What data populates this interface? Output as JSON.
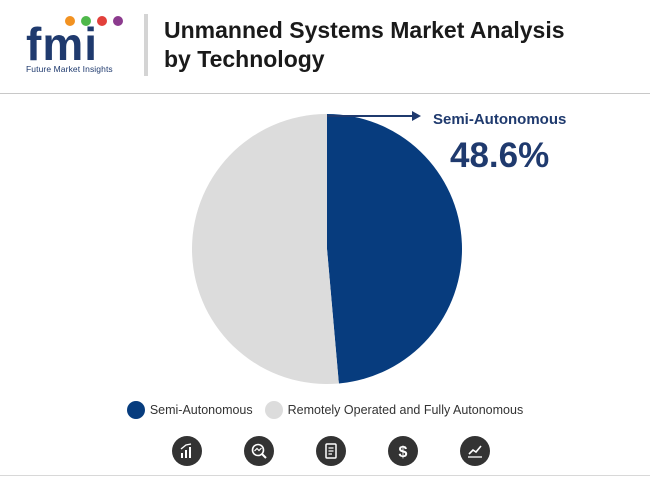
{
  "header": {
    "title_line1": "Unmanned Systems Market Analysis",
    "title_line2": "by Technology",
    "logo_text": "fmi",
    "logo_tagline": "Future Market Insights"
  },
  "callout": {
    "label": "Semi-Autonomous",
    "value": "48.6%"
  },
  "chart_data": {
    "type": "pie",
    "title": "Unmanned Systems Market Analysis by Technology",
    "slices": [
      {
        "name": "Semi-Autonomous",
        "value": 48.6,
        "color": "#073c7e"
      },
      {
        "name": "Remotely Operated and Fully Autonomous",
        "value": 51.4,
        "color": "#dcdcdc"
      }
    ],
    "legend": "bottom-center"
  },
  "footer_icons": [
    "bar-chart-icon",
    "magnifier-chart-icon",
    "report-icon",
    "dollar-icon",
    "trend-line-icon"
  ],
  "colors": {
    "brand_blue": "#1f3a6e",
    "slice_primary": "#073c7e",
    "slice_secondary": "#dcdcdc",
    "logo_orange": "#f29221",
    "logo_green": "#4fb84b",
    "logo_red": "#e2403b",
    "logo_purple": "#8c3b8e"
  }
}
